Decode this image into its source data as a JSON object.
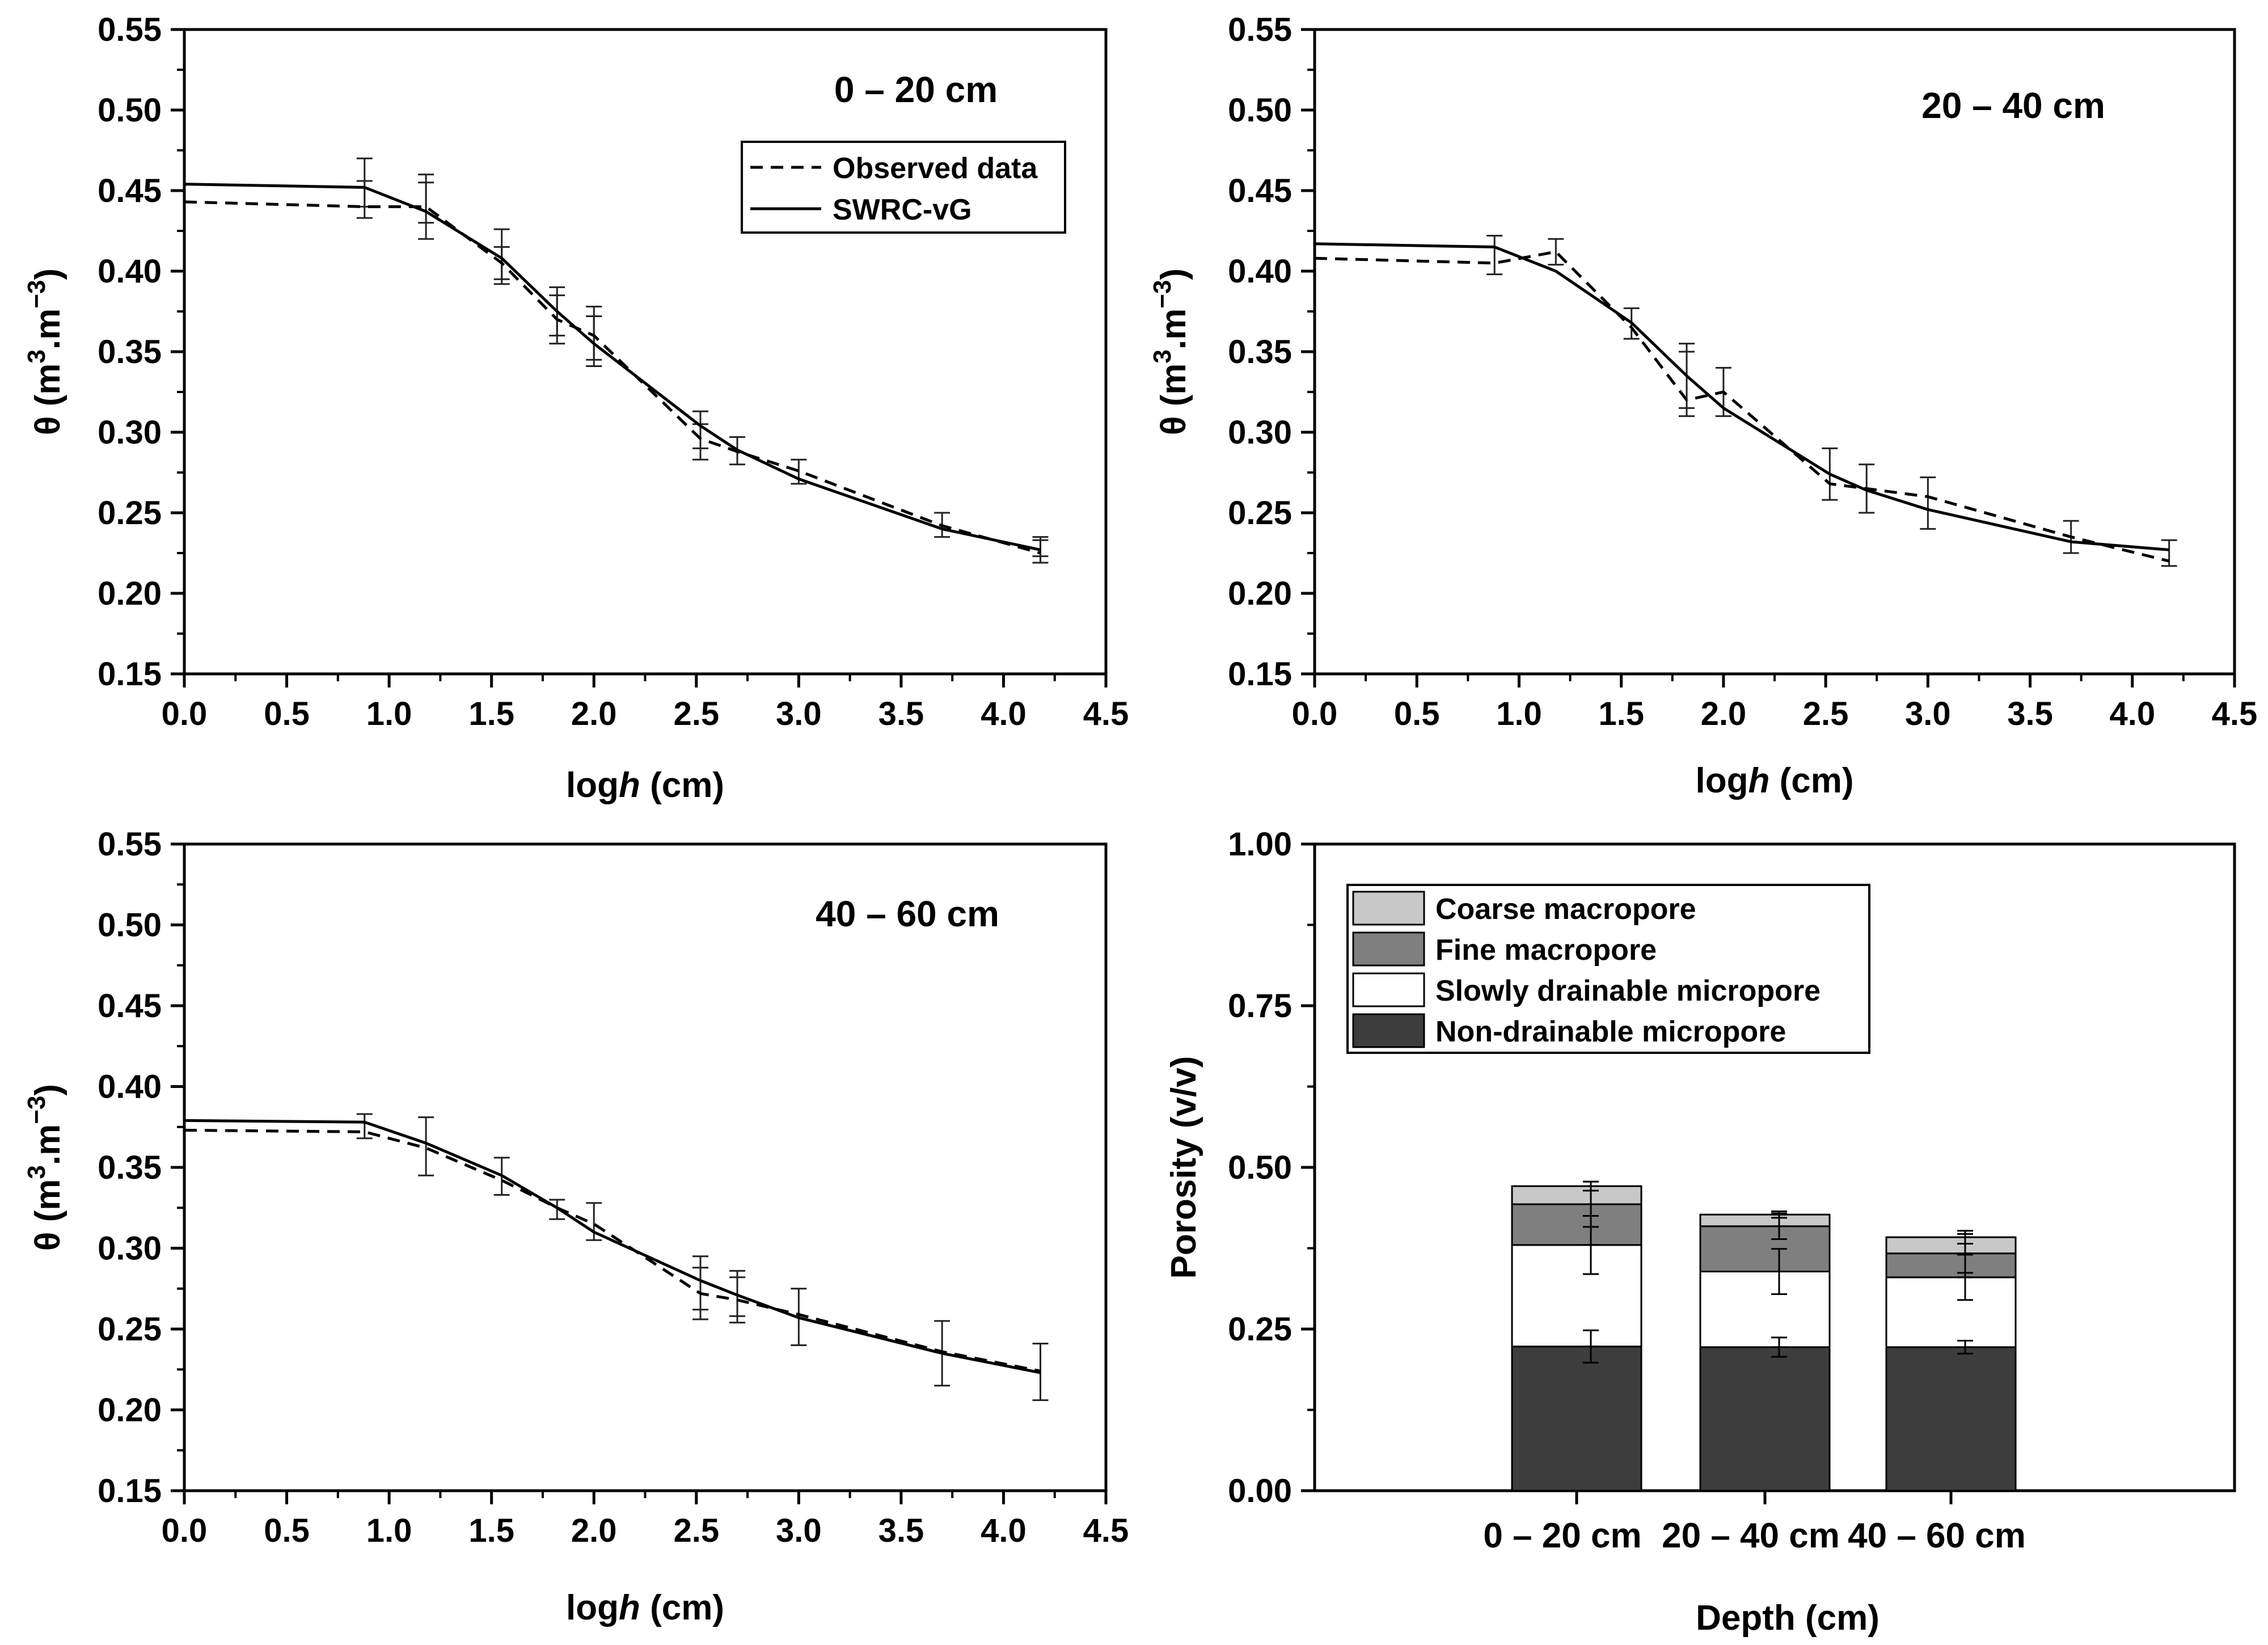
{
  "chart_data": [
    {
      "type": "line",
      "panel_label": "0 – 20 cm",
      "xlabel_prefix": "log",
      "xlabel_italic": "h",
      "xlabel_suffix": " (cm)",
      "ylabel_main": "θ (m",
      "ylabel_sup1": "3",
      "ylabel_mid": ".m",
      "ylabel_sup2": "−3",
      "ylabel_end": ")",
      "xlim": [
        0,
        4.5
      ],
      "ylim": [
        0.15,
        0.55
      ],
      "xticks": [
        "0.0",
        "0.5",
        "1.0",
        "1.5",
        "2.0",
        "2.5",
        "3.0",
        "3.5",
        "4.0",
        "4.5"
      ],
      "yticks": [
        "0.15",
        "0.20",
        "0.25",
        "0.30",
        "0.35",
        "0.40",
        "0.45",
        "0.50",
        "0.55"
      ],
      "legend": [
        "Observed data",
        "SWRC-vG"
      ],
      "series": [
        {
          "name": "Observed data",
          "style": "dashed",
          "x": [
            0,
            0.88,
            1.18,
            1.55,
            1.82,
            2.0,
            2.52,
            2.7,
            3.0,
            3.7,
            4.18
          ],
          "y": [
            0.443,
            0.44,
            0.44,
            0.405,
            0.37,
            0.36,
            0.296,
            0.288,
            0.276,
            0.242,
            0.225
          ]
        },
        {
          "name": "SWRC-vG",
          "style": "solid",
          "x": [
            0,
            0.88,
            1.18,
            1.55,
            1.82,
            2.0,
            2.52,
            2.7,
            3.0,
            3.7,
            4.18
          ],
          "y": [
            0.454,
            0.452,
            0.437,
            0.408,
            0.375,
            0.355,
            0.304,
            0.289,
            0.271,
            0.24,
            0.227
          ]
        }
      ],
      "error_bars": {
        "x": [
          0.88,
          0.88,
          1.18,
          1.18,
          1.55,
          1.55,
          1.82,
          1.82,
          2.0,
          2.0,
          2.52,
          2.52,
          2.7,
          3.0,
          3.7,
          4.18,
          4.18
        ],
        "low": [
          0.433,
          0.44,
          0.42,
          0.43,
          0.392,
          0.395,
          0.355,
          0.36,
          0.341,
          0.345,
          0.283,
          0.29,
          0.28,
          0.268,
          0.235,
          0.219,
          0.223
        ],
        "high": [
          0.456,
          0.47,
          0.455,
          0.46,
          0.426,
          0.415,
          0.385,
          0.39,
          0.372,
          0.378,
          0.313,
          0.305,
          0.297,
          0.283,
          0.25,
          0.233,
          0.235
        ]
      }
    },
    {
      "type": "line",
      "panel_label": "20 – 40 cm",
      "xlabel_prefix": "log",
      "xlabel_italic": "h",
      "xlabel_suffix": " (cm)",
      "ylabel_main": "θ (m",
      "ylabel_sup1": "3",
      "ylabel_mid": ".m",
      "ylabel_sup2": "−3",
      "ylabel_end": ")",
      "xlim": [
        0,
        4.5
      ],
      "ylim": [
        0.15,
        0.55
      ],
      "xticks": [
        "0.0",
        "0.5",
        "1.0",
        "1.5",
        "2.0",
        "2.5",
        "3.0",
        "3.5",
        "4.0",
        "4.5"
      ],
      "yticks": [
        "0.15",
        "0.20",
        "0.25",
        "0.30",
        "0.35",
        "0.40",
        "0.45",
        "0.50",
        "0.55"
      ],
      "series": [
        {
          "name": "Observed data",
          "style": "dashed",
          "x": [
            0,
            0.88,
            1.18,
            1.55,
            1.82,
            2.0,
            2.52,
            2.7,
            3.0,
            3.7,
            4.18
          ],
          "y": [
            0.408,
            0.405,
            0.412,
            0.365,
            0.32,
            0.325,
            0.268,
            0.265,
            0.26,
            0.235,
            0.22
          ]
        },
        {
          "name": "SWRC-vG",
          "style": "solid",
          "x": [
            0,
            0.88,
            1.18,
            1.55,
            1.82,
            2.0,
            2.52,
            2.7,
            3.0,
            3.7,
            4.18
          ],
          "y": [
            0.417,
            0.415,
            0.4,
            0.368,
            0.335,
            0.315,
            0.274,
            0.264,
            0.252,
            0.232,
            0.227
          ]
        }
      ],
      "error_bars": {
        "x": [
          0.88,
          1.18,
          1.55,
          1.82,
          1.82,
          2.0,
          2.52,
          2.7,
          3.0,
          3.7,
          4.18
        ],
        "low": [
          0.398,
          0.404,
          0.358,
          0.31,
          0.315,
          0.31,
          0.258,
          0.25,
          0.24,
          0.225,
          0.217
        ],
        "high": [
          0.422,
          0.42,
          0.377,
          0.355,
          0.35,
          0.34,
          0.29,
          0.28,
          0.272,
          0.245,
          0.233
        ]
      }
    },
    {
      "type": "line",
      "panel_label": "40 – 60 cm",
      "xlabel_prefix": "log",
      "xlabel_italic": "h",
      "xlabel_suffix": " (cm)",
      "ylabel_main": "θ (m",
      "ylabel_sup1": "3",
      "ylabel_mid": ".m",
      "ylabel_sup2": "−3",
      "ylabel_end": ")",
      "xlim": [
        0,
        4.5
      ],
      "ylim": [
        0.15,
        0.55
      ],
      "xticks": [
        "0.0",
        "0.5",
        "1.0",
        "1.5",
        "2.0",
        "2.5",
        "3.0",
        "3.5",
        "4.0",
        "4.5"
      ],
      "yticks": [
        "0.15",
        "0.20",
        "0.25",
        "0.30",
        "0.35",
        "0.40",
        "0.45",
        "0.50",
        "0.55"
      ],
      "series": [
        {
          "name": "Observed data",
          "style": "dashed",
          "x": [
            0,
            0.88,
            1.18,
            1.55,
            1.82,
            2.0,
            2.52,
            2.7,
            3.0,
            3.7,
            4.18
          ],
          "y": [
            0.373,
            0.372,
            0.362,
            0.342,
            0.325,
            0.315,
            0.272,
            0.268,
            0.259,
            0.236,
            0.224
          ]
        },
        {
          "name": "SWRC-vG",
          "style": "solid",
          "x": [
            0,
            0.88,
            1.18,
            1.55,
            1.82,
            2.0,
            2.52,
            2.7,
            3.0,
            3.7,
            4.18
          ],
          "y": [
            0.379,
            0.378,
            0.365,
            0.345,
            0.325,
            0.31,
            0.28,
            0.271,
            0.257,
            0.235,
            0.223
          ]
        }
      ],
      "error_bars": {
        "x": [
          0.88,
          1.18,
          1.55,
          1.82,
          2.0,
          2.52,
          2.52,
          2.7,
          2.7,
          3.0,
          3.7,
          4.18
        ],
        "low": [
          0.368,
          0.345,
          0.333,
          0.318,
          0.305,
          0.256,
          0.262,
          0.254,
          0.258,
          0.24,
          0.215,
          0.206
        ],
        "high": [
          0.383,
          0.381,
          0.356,
          0.33,
          0.328,
          0.295,
          0.288,
          0.286,
          0.282,
          0.275,
          0.255,
          0.241
        ]
      }
    },
    {
      "type": "bar",
      "stacked": true,
      "categories": [
        "0 – 20 cm",
        "20 – 40 cm",
        "40 – 60 cm"
      ],
      "xlabel": "Depth (cm)",
      "ylabel": "Porosity (v/v)",
      "ylim": [
        0,
        1.0
      ],
      "yticks": [
        "0.00",
        "0.25",
        "0.50",
        "0.75",
        "1.00"
      ],
      "legend_position": "top-left",
      "legend_order": [
        "Coarse macropore",
        "Fine macropore",
        "Slowly drainable micropore",
        "Non-drainable micropore"
      ],
      "series": [
        {
          "name": "Non-drainable micropore",
          "color": "#3d3d3d",
          "values": [
            0.223,
            0.222,
            0.222
          ]
        },
        {
          "name": "Slowly drainable micropore",
          "color": "#ffffff",
          "values": [
            0.157,
            0.117,
            0.108
          ]
        },
        {
          "name": "Fine macropore",
          "color": "#7f7f7f",
          "values": [
            0.063,
            0.07,
            0.037
          ]
        },
        {
          "name": "Coarse macropore",
          "color": "#c8c8c8",
          "values": [
            0.028,
            0.018,
            0.025
          ]
        }
      ],
      "error_bars": [
        {
          "category": 0,
          "center": 0.223,
          "err": 0.025
        },
        {
          "category": 0,
          "center": 0.38,
          "err": 0.045
        },
        {
          "category": 0,
          "center": 0.443,
          "err": 0.035
        },
        {
          "category": 0,
          "center": 0.471,
          "err": 0.007
        },
        {
          "category": 1,
          "center": 0.222,
          "err": 0.015
        },
        {
          "category": 1,
          "center": 0.339,
          "err": 0.035
        },
        {
          "category": 1,
          "center": 0.409,
          "err": 0.02
        },
        {
          "category": 1,
          "center": 0.427,
          "err": 0.005
        },
        {
          "category": 2,
          "center": 0.222,
          "err": 0.01
        },
        {
          "category": 2,
          "center": 0.33,
          "err": 0.035
        },
        {
          "category": 2,
          "center": 0.367,
          "err": 0.03
        },
        {
          "category": 2,
          "center": 0.392,
          "err": 0.01
        }
      ]
    }
  ]
}
